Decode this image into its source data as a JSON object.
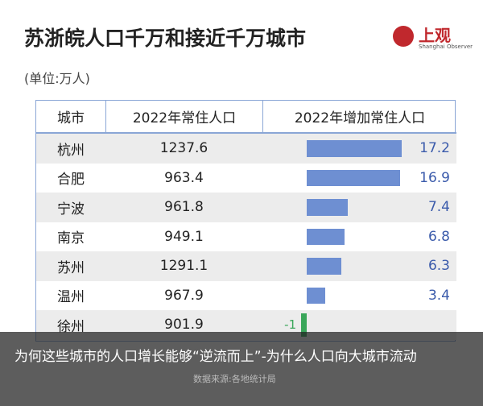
{
  "header": {
    "title": "苏浙皖人口千万和接近千万城市",
    "unit": "(单位:万人)",
    "logo_text": "上观",
    "logo_sub": "Shanghai Observer"
  },
  "table": {
    "columns": [
      "城市",
      "2022年常住人口",
      "2022年增加常住人口"
    ],
    "rows": [
      [
        "杭州",
        1237.6,
        17.2
      ],
      [
        "合肥",
        963.4,
        16.9
      ],
      [
        "宁波",
        961.8,
        7.4
      ],
      [
        "南京",
        949.1,
        6.8
      ],
      [
        "苏州",
        1291.1,
        6.3
      ],
      [
        "温州",
        967.9,
        3.4
      ],
      [
        "徐州",
        901.9,
        -1
      ]
    ]
  },
  "caption": "为何这些城市的人口增长能够“逆流而上”-为什么人口向大城市流动",
  "source": "数据来源:各地统计局"
}
